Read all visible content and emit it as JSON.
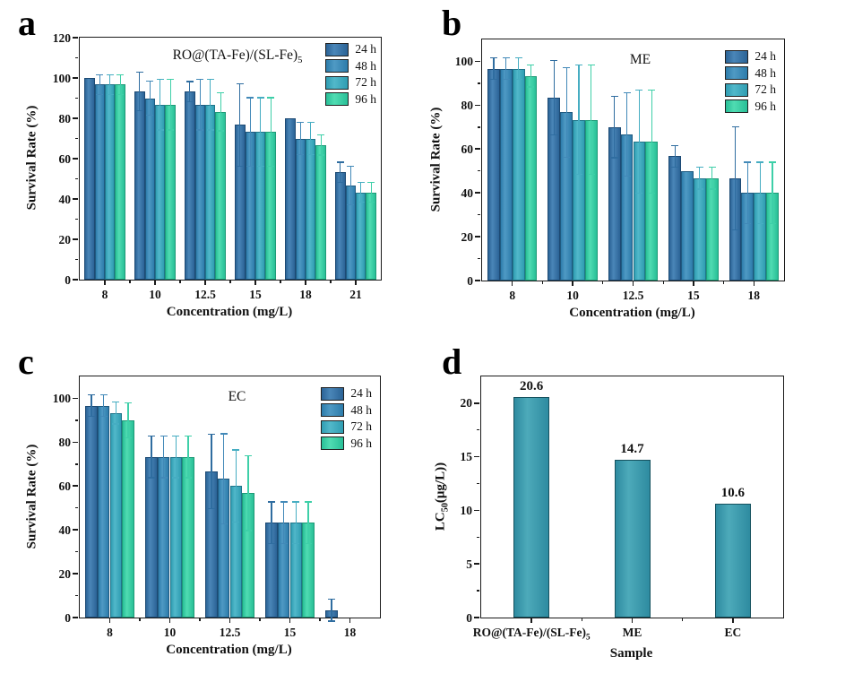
{
  "figure": {
    "background": "#ffffff",
    "axis_color": "#1a1a1a",
    "panel_letters": [
      "a",
      "b",
      "c",
      "d"
    ]
  },
  "chart_data": [
    {
      "id": "a",
      "panel_label": "a",
      "type": "bar",
      "grouped": true,
      "title": {
        "text": "RO@(TA-Fe)/(SL-Fe)",
        "sub": "5"
      },
      "xlabel": "Concentration (mg/L)",
      "ylabel": {
        "text": "Survival Rate (%)"
      },
      "ylim": [
        0,
        120
      ],
      "yticks": [
        0,
        20,
        40,
        60,
        80,
        100,
        120
      ],
      "grid": false,
      "legend_position": "top-right",
      "categories": [
        {
          "text": "8"
        },
        {
          "text": "10"
        },
        {
          "text": "12.5"
        },
        {
          "text": "15"
        },
        {
          "text": "18"
        },
        {
          "text": "21"
        }
      ],
      "series": [
        {
          "name": "24 h",
          "color": "#2b6396",
          "color_light": "#4a86b8",
          "border": "#1d4a74",
          "err_color": "#2f6da0",
          "values": [
            100,
            93.3,
            93.3,
            76.7,
            80,
            53.3
          ],
          "errors": [
            0,
            9.5,
            5,
            20.5,
            0,
            5
          ]
        },
        {
          "name": "48 h",
          "color": "#2d7cab",
          "color_light": "#4f9ac4",
          "border": "#1f5a80",
          "err_color": "#4289b8",
          "values": [
            96.7,
            90,
            86.7,
            73.3,
            70,
            46.7
          ],
          "errors": [
            5,
            8.5,
            12.5,
            17,
            8,
            9.5
          ]
        },
        {
          "name": "72 h",
          "color": "#2f9db2",
          "color_light": "#52b8ca",
          "border": "#20758a",
          "err_color": "#46adc2",
          "values": [
            96.7,
            86.7,
            86.7,
            73.3,
            70,
            43.3
          ],
          "errors": [
            5,
            12.5,
            12.5,
            17,
            8,
            5
          ]
        },
        {
          "name": "96 h",
          "color": "#28bf97",
          "color_light": "#50dcb2",
          "border": "#1f9a77",
          "err_color": "#3ecfa8",
          "values": [
            96.7,
            86.7,
            83.3,
            73.3,
            66.7,
            43.3
          ],
          "errors": [
            5,
            12.5,
            9.5,
            17,
            5,
            5
          ]
        }
      ]
    },
    {
      "id": "b",
      "panel_label": "b",
      "type": "bar",
      "grouped": true,
      "title": {
        "text": "ME"
      },
      "xlabel": "Concentration (mg/L)",
      "ylabel": {
        "text": "Survival Rate (%)"
      },
      "ylim": [
        0,
        110
      ],
      "yticks": [
        0,
        20,
        40,
        60,
        80,
        100
      ],
      "grid": false,
      "legend_position": "top-right",
      "categories": [
        {
          "text": "8"
        },
        {
          "text": "10"
        },
        {
          "text": "12.5"
        },
        {
          "text": "15"
        },
        {
          "text": "18"
        }
      ],
      "series": [
        {
          "name": "24 h",
          "color": "#2b6396",
          "color_light": "#4a86b8",
          "border": "#1d4a74",
          "err_color": "#2f6da0",
          "values": [
            96.7,
            83.3,
            70,
            56.7,
            46.7
          ],
          "errors": [
            5,
            17,
            14,
            5,
            23.5
          ]
        },
        {
          "name": "48 h",
          "color": "#2d7cab",
          "color_light": "#4f9ac4",
          "border": "#1f5a80",
          "err_color": "#4289b8",
          "values": [
            96.7,
            76.7,
            66.7,
            50,
            40
          ],
          "errors": [
            5,
            20.5,
            19,
            0,
            14
          ]
        },
        {
          "name": "72 h",
          "color": "#2f9db2",
          "color_light": "#52b8ca",
          "border": "#20758a",
          "err_color": "#46adc2",
          "values": [
            96.7,
            73.3,
            63.3,
            46.7,
            40
          ],
          "errors": [
            5,
            25,
            23.5,
            5,
            14
          ]
        },
        {
          "name": "96 h",
          "color": "#28bf97",
          "color_light": "#50dcb2",
          "border": "#1f9a77",
          "err_color": "#3ecfa8",
          "values": [
            93.3,
            73.3,
            63.3,
            46.7,
            40
          ],
          "errors": [
            5,
            25,
            23.5,
            5,
            14
          ]
        }
      ]
    },
    {
      "id": "c",
      "panel_label": "c",
      "type": "bar",
      "grouped": true,
      "title": {
        "text": "EC"
      },
      "xlabel": "Concentration (mg/L)",
      "ylabel": {
        "text": "Survival Rate (%)"
      },
      "ylim": [
        0,
        110
      ],
      "yticks": [
        0,
        20,
        40,
        60,
        80,
        100
      ],
      "grid": false,
      "legend_position": "top-right",
      "categories": [
        {
          "text": "8"
        },
        {
          "text": "10"
        },
        {
          "text": "12.5"
        },
        {
          "text": "15"
        },
        {
          "text": "18"
        }
      ],
      "series": [
        {
          "name": "24 h",
          "color": "#2b6396",
          "color_light": "#4a86b8",
          "border": "#1d4a74",
          "err_color": "#2f6da0",
          "values": [
            96.7,
            73.3,
            66.7,
            43.3,
            3.3
          ],
          "errors": [
            5,
            9.5,
            17,
            9.5,
            5
          ]
        },
        {
          "name": "48 h",
          "color": "#2d7cab",
          "color_light": "#4f9ac4",
          "border": "#1f5a80",
          "err_color": "#4289b8",
          "values": [
            96.7,
            73.3,
            63.3,
            43.3,
            0
          ],
          "errors": [
            5,
            9.5,
            20.5,
            9.5,
            0
          ]
        },
        {
          "name": "72 h",
          "color": "#2f9db2",
          "color_light": "#52b8ca",
          "border": "#20758a",
          "err_color": "#46adc2",
          "values": [
            93.3,
            73.3,
            60,
            43.3,
            0
          ],
          "errors": [
            5,
            9.5,
            16.5,
            9.5,
            0
          ]
        },
        {
          "name": "96 h",
          "color": "#28bf97",
          "color_light": "#50dcb2",
          "border": "#1f9a77",
          "err_color": "#3ecfa8",
          "values": [
            90,
            73.3,
            56.7,
            43.3,
            0
          ],
          "errors": [
            8,
            9.5,
            17,
            9.5,
            0
          ]
        }
      ]
    },
    {
      "id": "d",
      "panel_label": "d",
      "type": "bar",
      "grouped": false,
      "title": null,
      "xlabel": "Sample",
      "ylabel": {
        "pre": "LC",
        "sub": "50",
        "post": "(μg/L))"
      },
      "ylim": [
        0,
        22.5
      ],
      "yticks": [
        0,
        5,
        10,
        15,
        20
      ],
      "grid": false,
      "categories": [
        {
          "text": "RO@(TA-Fe)/(SL-Fe)",
          "sub": "5"
        },
        {
          "text": "ME"
        },
        {
          "text": "EC"
        }
      ],
      "bar_color": "#2e8ba0",
      "bar_color_light": "#4daaba",
      "bar_border": "#16525f",
      "values": [
        20.6,
        14.7,
        10.6
      ],
      "value_labels": [
        "20.6",
        "14.7",
        "10.6"
      ]
    }
  ]
}
